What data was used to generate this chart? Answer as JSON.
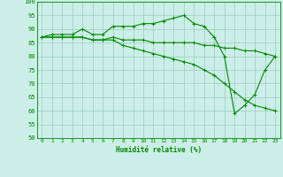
{
  "xlabel": "Humidité relative (%)",
  "background_color": "#cceee8",
  "grid_color": "#99ccbb",
  "line_color": "#008800",
  "xlim": [
    -0.5,
    23.5
  ],
  "ylim": [
    50,
    100
  ],
  "yticks": [
    50,
    55,
    60,
    65,
    70,
    75,
    80,
    85,
    90,
    95,
    100
  ],
  "xticks": [
    0,
    1,
    2,
    3,
    4,
    5,
    6,
    7,
    8,
    9,
    10,
    11,
    12,
    13,
    14,
    15,
    16,
    17,
    18,
    19,
    20,
    21,
    22,
    23
  ],
  "series1_x": [
    0,
    1,
    2,
    3,
    4,
    5,
    6,
    7,
    8,
    9,
    10,
    11,
    12,
    13,
    14,
    15,
    16,
    17,
    18,
    19,
    20,
    21,
    22,
    23
  ],
  "series1_y": [
    87,
    88,
    88,
    88,
    90,
    88,
    88,
    91,
    91,
    91,
    92,
    92,
    93,
    94,
    95,
    92,
    91,
    87,
    80,
    59,
    62,
    66,
    75,
    80
  ],
  "series2_x": [
    0,
    1,
    2,
    3,
    4,
    5,
    6,
    7,
    8,
    9,
    10,
    11,
    12,
    13,
    14,
    15,
    16,
    17,
    18,
    19,
    20,
    21,
    22,
    23
  ],
  "series2_y": [
    87,
    87,
    87,
    87,
    87,
    86,
    86,
    87,
    86,
    86,
    86,
    85,
    85,
    85,
    85,
    85,
    84,
    84,
    83,
    83,
    82,
    82,
    81,
    80
  ],
  "series3_x": [
    0,
    1,
    2,
    3,
    4,
    5,
    6,
    7,
    8,
    9,
    10,
    11,
    12,
    13,
    14,
    15,
    16,
    17,
    18,
    19,
    20,
    21,
    22,
    23
  ],
  "series3_y": [
    87,
    87,
    87,
    87,
    87,
    86,
    86,
    86,
    84,
    83,
    82,
    81,
    80,
    79,
    78,
    77,
    75,
    73,
    70,
    67,
    64,
    62,
    61,
    60
  ]
}
